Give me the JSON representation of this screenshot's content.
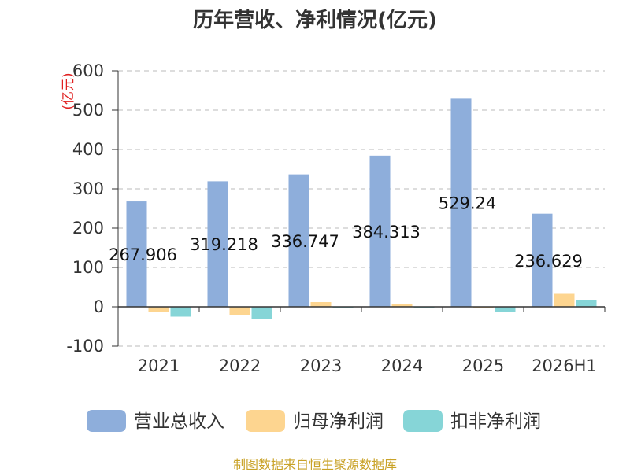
{
  "chart_data": {
    "type": "bar",
    "title": "历年营收、净利情况(亿元)",
    "ylabel": "(亿元)",
    "xlabel": "",
    "ylim": [
      -100,
      600
    ],
    "yticks": [
      600,
      500,
      400,
      300,
      200,
      100,
      0,
      -100
    ],
    "grid": true,
    "legend_position": "bottom",
    "categories": [
      "2021",
      "2022",
      "2023",
      "2024",
      "2025",
      "2026H1"
    ],
    "series": [
      {
        "name": "营业总收入",
        "color": "#8eaedb",
        "values": [
          267.906,
          319.218,
          336.747,
          384.313,
          529.24,
          236.629
        ]
      },
      {
        "name": "归母净利润",
        "color": "#fdd590",
        "values": [
          -12,
          -20,
          12,
          8,
          -3,
          33
        ]
      },
      {
        "name": "扣非净利润",
        "color": "#86d5d7",
        "values": [
          -25,
          -30,
          -3,
          -1,
          -13,
          18
        ]
      }
    ],
    "data_labels": [
      "267.906",
      "319.218",
      "336.747",
      "384.313",
      "529.24",
      "236.629"
    ],
    "source": "制图数据来自恒生聚源数据库"
  }
}
